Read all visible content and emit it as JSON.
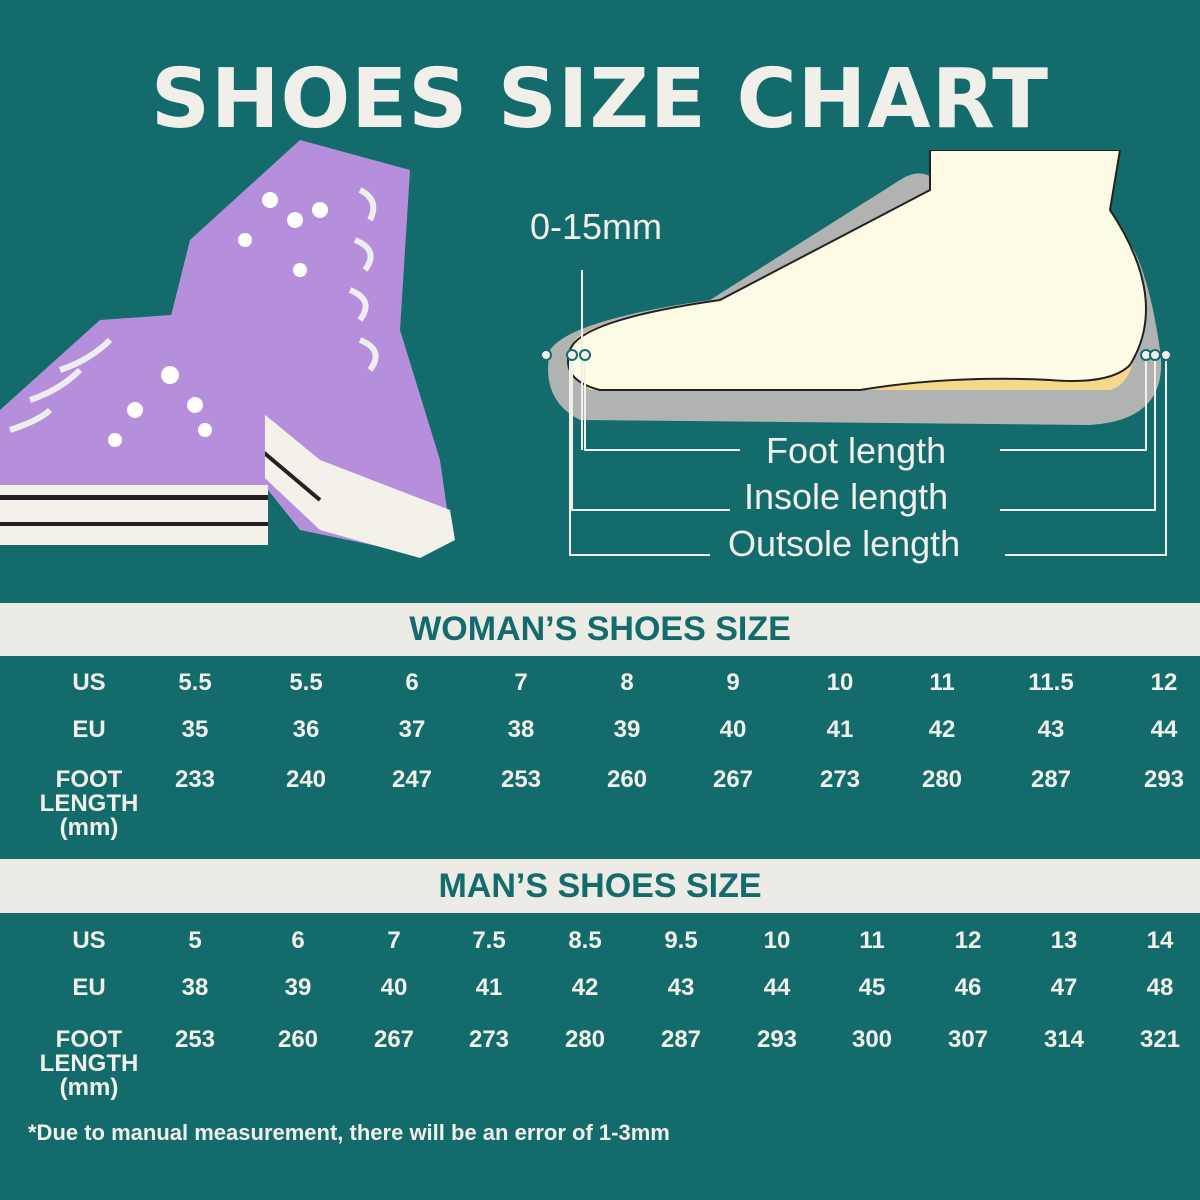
{
  "title": "SHOES SIZE CHART",
  "diagram": {
    "toe_gap": "0-15mm",
    "foot_length": "Foot length",
    "insole_length": "Insole length",
    "outsole_length": "Outsole length"
  },
  "colors": {
    "background": "#136c6b",
    "band": "#ecebe6",
    "text": "#f1efea",
    "shoe": "#b68fdc"
  },
  "woman": {
    "heading": "WOMAN’S SHOES SIZE",
    "row_labels": [
      "US",
      "EU",
      "FOOT\nLENGTH\n(mm)"
    ],
    "us": [
      "5.5",
      "5.5",
      "6",
      "7",
      "8",
      "9",
      "10",
      "11",
      "11.5",
      "12"
    ],
    "eu": [
      "35",
      "36",
      "37",
      "38",
      "39",
      "40",
      "41",
      "42",
      "43",
      "44"
    ],
    "foot_length_mm": [
      "233",
      "240",
      "247",
      "253",
      "260",
      "267",
      "273",
      "280",
      "287",
      "293"
    ]
  },
  "man": {
    "heading": "MAN’S SHOES SIZE",
    "row_labels": [
      "US",
      "EU",
      "FOOT\nLENGTH\n(mm)"
    ],
    "us": [
      "5",
      "6",
      "7",
      "7.5",
      "8.5",
      "9.5",
      "10",
      "11",
      "12",
      "13",
      "14"
    ],
    "eu": [
      "38",
      "39",
      "40",
      "41",
      "42",
      "43",
      "44",
      "45",
      "46",
      "47",
      "48"
    ],
    "foot_length_mm": [
      "253",
      "260",
      "267",
      "273",
      "280",
      "287",
      "293",
      "300",
      "307",
      "314",
      "321"
    ]
  },
  "note": "*Due to manual measurement, there will be an error of 1-3mm"
}
